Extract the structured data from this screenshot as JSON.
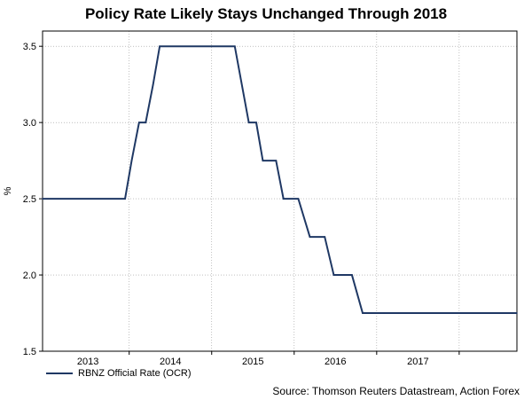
{
  "chart_data": {
    "type": "line",
    "title": "Policy Rate Likely Stays Unchanged Through 2018",
    "xlabel": "",
    "ylabel": "%",
    "ylim": [
      1.5,
      3.6
    ],
    "xlim": [
      2012.2,
      2017.95
    ],
    "yticks": [
      1.5,
      2.0,
      2.5,
      3.0,
      3.5
    ],
    "ytick_labels": [
      "1.5",
      "2.0",
      "2.5",
      "3.0",
      "3.5"
    ],
    "xtick_labels": [
      {
        "label": "2013",
        "at": 2012.75
      },
      {
        "label": "2014",
        "at": 2013.75
      },
      {
        "label": "2015",
        "at": 2014.75
      },
      {
        "label": "2016",
        "at": 2015.75
      },
      {
        "label": "2017",
        "at": 2016.75
      }
    ],
    "year_dividers": [
      2013.25,
      2014.25,
      2015.25,
      2016.25,
      2017.25
    ],
    "grid": true,
    "legend_position": "bottom-left",
    "series": [
      {
        "name": "RBNZ Official Rate (OCR)",
        "color": "#1f3864",
        "x": [
          2012.2,
          2013.2,
          2013.28,
          2013.37,
          2013.45,
          2013.54,
          2013.62,
          2014.53,
          2014.7,
          2014.79,
          2014.87,
          2015.03,
          2015.12,
          2015.3,
          2015.44,
          2015.62,
          2015.73,
          2015.95,
          2016.08,
          2016.2,
          2016.34,
          2016.51,
          2016.6,
          2017.95
        ],
        "y": [
          2.5,
          2.5,
          2.75,
          3.0,
          3.0,
          3.25,
          3.5,
          3.5,
          3.0,
          3.0,
          2.75,
          2.75,
          2.5,
          2.5,
          2.25,
          2.25,
          2.0,
          2.0,
          1.75,
          1.75,
          1.75,
          1.75,
          1.75,
          1.75
        ]
      }
    ],
    "source": "Source: Thomson Reuters Datastream, Action Forex"
  }
}
